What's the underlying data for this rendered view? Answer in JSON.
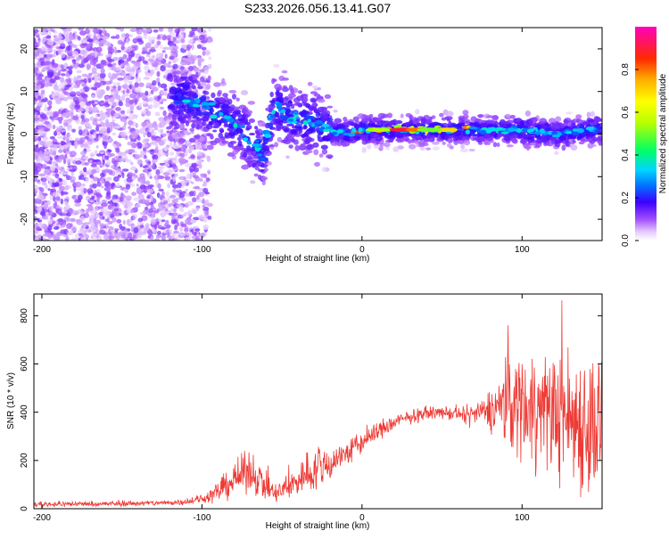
{
  "title": "S233.2026.056.13.41.G07",
  "chart_data": [
    {
      "type": "heatmap",
      "name": "spectrogram",
      "xlabel": "Height of straight line (km)",
      "ylabel": "Frequency (Hz)",
      "xlim": [
        -205,
        150
      ],
      "ylim": [
        -25,
        25
      ],
      "xticks": [
        -200,
        -100,
        0,
        100
      ],
      "yticks": [
        20,
        10,
        0,
        -10,
        -20
      ],
      "ridge": [
        {
          "x": -110,
          "y": 8
        },
        {
          "x": -90,
          "y": 5
        },
        {
          "x": -75,
          "y": 1
        },
        {
          "x": -62,
          "y": -5
        },
        {
          "x": -55,
          "y": 7
        },
        {
          "x": -45,
          "y": 4
        },
        {
          "x": -35,
          "y": 3
        },
        {
          "x": -20,
          "y": 1
        },
        {
          "x": -10,
          "y": 0
        },
        {
          "x": 0,
          "y": 1
        },
        {
          "x": 20,
          "y": 1
        },
        {
          "x": 40,
          "y": 1
        },
        {
          "x": 60,
          "y": 1
        },
        {
          "x": 80,
          "y": 1
        },
        {
          "x": 100,
          "y": 1
        },
        {
          "x": 120,
          "y": 0
        },
        {
          "x": 140,
          "y": 1
        }
      ]
    },
    {
      "type": "colorbar",
      "label": "Normalized spectral amplitude",
      "range": [
        0,
        1
      ],
      "ticks": [
        0.0,
        0.2,
        0.4,
        0.6,
        0.8
      ],
      "tick_labels": [
        "0.0",
        "0.2",
        "0.4",
        "0.6",
        "0.8"
      ],
      "colormap": "rainbow"
    },
    {
      "type": "line",
      "name": "snr",
      "xlabel": "Height of straight line (km)",
      "ylabel": "SNR (10 * v/v)",
      "xlim": [
        -205,
        150
      ],
      "ylim": [
        0,
        890
      ],
      "xticks": [
        -200,
        -100,
        0,
        100
      ],
      "yticks": [
        0,
        200,
        400,
        600,
        800
      ],
      "color": "#ee3a34",
      "series": [
        {
          "name": "SNR",
          "x": [
            -205,
            -180,
            -160,
            -140,
            -120,
            -110,
            -100,
            -90,
            -80,
            -70,
            -62,
            -55,
            -45,
            -35,
            -25,
            -15,
            -5,
            5,
            15,
            25,
            35,
            45,
            55,
            65,
            75,
            85,
            90,
            100,
            110,
            120,
            130,
            140,
            150
          ],
          "y": [
            18,
            20,
            20,
            22,
            25,
            30,
            40,
            70,
            120,
            160,
            110,
            60,
            90,
            150,
            170,
            210,
            250,
            300,
            340,
            370,
            390,
            400,
            395,
            385,
            400,
            420,
            440,
            440,
            420,
            400,
            380,
            360,
            340
          ],
          "noise": [
            8,
            8,
            8,
            8,
            8,
            10,
            14,
            30,
            50,
            60,
            50,
            30,
            40,
            60,
            70,
            40,
            40,
            30,
            30,
            20,
            20,
            15,
            20,
            25,
            35,
            90,
            140,
            160,
            170,
            180,
            200,
            220,
            240
          ]
        }
      ]
    }
  ]
}
